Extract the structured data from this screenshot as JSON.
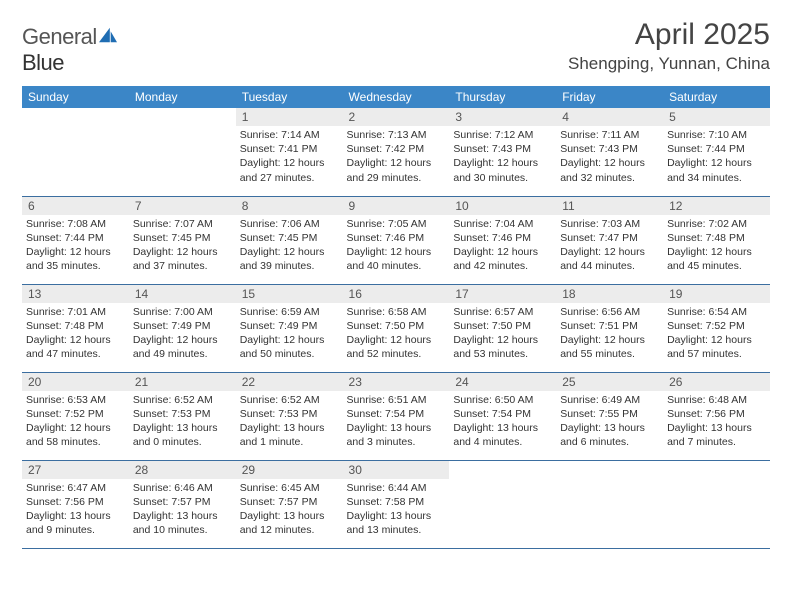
{
  "logo": {
    "word1": "General",
    "word2": "Blue"
  },
  "colors": {
    "header_bg": "#3b86c7",
    "header_text": "#ffffff",
    "row_divider": "#3b6ea0",
    "daynum_bg": "#ececec",
    "logo_accent": "#1f6db3",
    "text": "#333333"
  },
  "title": "April 2025",
  "location": "Shengping, Yunnan, China",
  "day_headers": [
    "Sunday",
    "Monday",
    "Tuesday",
    "Wednesday",
    "Thursday",
    "Friday",
    "Saturday"
  ],
  "layout": {
    "columns": 7,
    "leading_blanks": 2
  },
  "days": [
    {
      "n": "1",
      "sr": "Sunrise: 7:14 AM",
      "ss": "Sunset: 7:41 PM",
      "dl": "Daylight: 12 hours and 27 minutes."
    },
    {
      "n": "2",
      "sr": "Sunrise: 7:13 AM",
      "ss": "Sunset: 7:42 PM",
      "dl": "Daylight: 12 hours and 29 minutes."
    },
    {
      "n": "3",
      "sr": "Sunrise: 7:12 AM",
      "ss": "Sunset: 7:43 PM",
      "dl": "Daylight: 12 hours and 30 minutes."
    },
    {
      "n": "4",
      "sr": "Sunrise: 7:11 AM",
      "ss": "Sunset: 7:43 PM",
      "dl": "Daylight: 12 hours and 32 minutes."
    },
    {
      "n": "5",
      "sr": "Sunrise: 7:10 AM",
      "ss": "Sunset: 7:44 PM",
      "dl": "Daylight: 12 hours and 34 minutes."
    },
    {
      "n": "6",
      "sr": "Sunrise: 7:08 AM",
      "ss": "Sunset: 7:44 PM",
      "dl": "Daylight: 12 hours and 35 minutes."
    },
    {
      "n": "7",
      "sr": "Sunrise: 7:07 AM",
      "ss": "Sunset: 7:45 PM",
      "dl": "Daylight: 12 hours and 37 minutes."
    },
    {
      "n": "8",
      "sr": "Sunrise: 7:06 AM",
      "ss": "Sunset: 7:45 PM",
      "dl": "Daylight: 12 hours and 39 minutes."
    },
    {
      "n": "9",
      "sr": "Sunrise: 7:05 AM",
      "ss": "Sunset: 7:46 PM",
      "dl": "Daylight: 12 hours and 40 minutes."
    },
    {
      "n": "10",
      "sr": "Sunrise: 7:04 AM",
      "ss": "Sunset: 7:46 PM",
      "dl": "Daylight: 12 hours and 42 minutes."
    },
    {
      "n": "11",
      "sr": "Sunrise: 7:03 AM",
      "ss": "Sunset: 7:47 PM",
      "dl": "Daylight: 12 hours and 44 minutes."
    },
    {
      "n": "12",
      "sr": "Sunrise: 7:02 AM",
      "ss": "Sunset: 7:48 PM",
      "dl": "Daylight: 12 hours and 45 minutes."
    },
    {
      "n": "13",
      "sr": "Sunrise: 7:01 AM",
      "ss": "Sunset: 7:48 PM",
      "dl": "Daylight: 12 hours and 47 minutes."
    },
    {
      "n": "14",
      "sr": "Sunrise: 7:00 AM",
      "ss": "Sunset: 7:49 PM",
      "dl": "Daylight: 12 hours and 49 minutes."
    },
    {
      "n": "15",
      "sr": "Sunrise: 6:59 AM",
      "ss": "Sunset: 7:49 PM",
      "dl": "Daylight: 12 hours and 50 minutes."
    },
    {
      "n": "16",
      "sr": "Sunrise: 6:58 AM",
      "ss": "Sunset: 7:50 PM",
      "dl": "Daylight: 12 hours and 52 minutes."
    },
    {
      "n": "17",
      "sr": "Sunrise: 6:57 AM",
      "ss": "Sunset: 7:50 PM",
      "dl": "Daylight: 12 hours and 53 minutes."
    },
    {
      "n": "18",
      "sr": "Sunrise: 6:56 AM",
      "ss": "Sunset: 7:51 PM",
      "dl": "Daylight: 12 hours and 55 minutes."
    },
    {
      "n": "19",
      "sr": "Sunrise: 6:54 AM",
      "ss": "Sunset: 7:52 PM",
      "dl": "Daylight: 12 hours and 57 minutes."
    },
    {
      "n": "20",
      "sr": "Sunrise: 6:53 AM",
      "ss": "Sunset: 7:52 PM",
      "dl": "Daylight: 12 hours and 58 minutes."
    },
    {
      "n": "21",
      "sr": "Sunrise: 6:52 AM",
      "ss": "Sunset: 7:53 PM",
      "dl": "Daylight: 13 hours and 0 minutes."
    },
    {
      "n": "22",
      "sr": "Sunrise: 6:52 AM",
      "ss": "Sunset: 7:53 PM",
      "dl": "Daylight: 13 hours and 1 minute."
    },
    {
      "n": "23",
      "sr": "Sunrise: 6:51 AM",
      "ss": "Sunset: 7:54 PM",
      "dl": "Daylight: 13 hours and 3 minutes."
    },
    {
      "n": "24",
      "sr": "Sunrise: 6:50 AM",
      "ss": "Sunset: 7:54 PM",
      "dl": "Daylight: 13 hours and 4 minutes."
    },
    {
      "n": "25",
      "sr": "Sunrise: 6:49 AM",
      "ss": "Sunset: 7:55 PM",
      "dl": "Daylight: 13 hours and 6 minutes."
    },
    {
      "n": "26",
      "sr": "Sunrise: 6:48 AM",
      "ss": "Sunset: 7:56 PM",
      "dl": "Daylight: 13 hours and 7 minutes."
    },
    {
      "n": "27",
      "sr": "Sunrise: 6:47 AM",
      "ss": "Sunset: 7:56 PM",
      "dl": "Daylight: 13 hours and 9 minutes."
    },
    {
      "n": "28",
      "sr": "Sunrise: 6:46 AM",
      "ss": "Sunset: 7:57 PM",
      "dl": "Daylight: 13 hours and 10 minutes."
    },
    {
      "n": "29",
      "sr": "Sunrise: 6:45 AM",
      "ss": "Sunset: 7:57 PM",
      "dl": "Daylight: 13 hours and 12 minutes."
    },
    {
      "n": "30",
      "sr": "Sunrise: 6:44 AM",
      "ss": "Sunset: 7:58 PM",
      "dl": "Daylight: 13 hours and 13 minutes."
    }
  ]
}
